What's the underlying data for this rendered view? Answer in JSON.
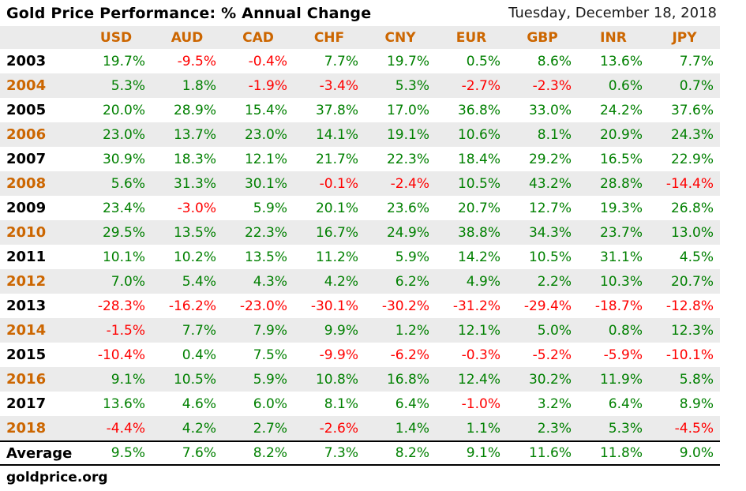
{
  "header": {
    "title": "Gold Price Performance: % Annual Change",
    "date": "Tuesday, December 18, 2018"
  },
  "footer": {
    "site": "goldprice.org"
  },
  "colors": {
    "orange": "#cc6600",
    "green": "#008000",
    "red": "#ff0000",
    "stripe": "#ebebeb",
    "text": "#000000",
    "background": "#ffffff"
  },
  "chart_data": {
    "type": "table",
    "title": "Gold Price Performance: % Annual Change",
    "columns": [
      "USD",
      "AUD",
      "CAD",
      "CHF",
      "CNY",
      "EUR",
      "GBP",
      "INR",
      "JPY"
    ],
    "row_header_label": "",
    "rows": [
      {
        "label": "2003",
        "values": [
          "19.7%",
          "-9.5%",
          "-0.4%",
          "7.7%",
          "19.7%",
          "0.5%",
          "8.6%",
          "13.6%",
          "7.7%"
        ]
      },
      {
        "label": "2004",
        "values": [
          "5.3%",
          "1.8%",
          "-1.9%",
          "-3.4%",
          "5.3%",
          "-2.7%",
          "-2.3%",
          "0.6%",
          "0.7%"
        ]
      },
      {
        "label": "2005",
        "values": [
          "20.0%",
          "28.9%",
          "15.4%",
          "37.8%",
          "17.0%",
          "36.8%",
          "33.0%",
          "24.2%",
          "37.6%"
        ]
      },
      {
        "label": "2006",
        "values": [
          "23.0%",
          "13.7%",
          "23.0%",
          "14.1%",
          "19.1%",
          "10.6%",
          "8.1%",
          "20.9%",
          "24.3%"
        ]
      },
      {
        "label": "2007",
        "values": [
          "30.9%",
          "18.3%",
          "12.1%",
          "21.7%",
          "22.3%",
          "18.4%",
          "29.2%",
          "16.5%",
          "22.9%"
        ]
      },
      {
        "label": "2008",
        "values": [
          "5.6%",
          "31.3%",
          "30.1%",
          "-0.1%",
          "-2.4%",
          "10.5%",
          "43.2%",
          "28.8%",
          "-14.4%"
        ]
      },
      {
        "label": "2009",
        "values": [
          "23.4%",
          "-3.0%",
          "5.9%",
          "20.1%",
          "23.6%",
          "20.7%",
          "12.7%",
          "19.3%",
          "26.8%"
        ]
      },
      {
        "label": "2010",
        "values": [
          "29.5%",
          "13.5%",
          "22.3%",
          "16.7%",
          "24.9%",
          "38.8%",
          "34.3%",
          "23.7%",
          "13.0%"
        ]
      },
      {
        "label": "2011",
        "values": [
          "10.1%",
          "10.2%",
          "13.5%",
          "11.2%",
          "5.9%",
          "14.2%",
          "10.5%",
          "31.1%",
          "4.5%"
        ]
      },
      {
        "label": "2012",
        "values": [
          "7.0%",
          "5.4%",
          "4.3%",
          "4.2%",
          "6.2%",
          "4.9%",
          "2.2%",
          "10.3%",
          "20.7%"
        ]
      },
      {
        "label": "2013",
        "values": [
          "-28.3%",
          "-16.2%",
          "-23.0%",
          "-30.1%",
          "-30.2%",
          "-31.2%",
          "-29.4%",
          "-18.7%",
          "-12.8%"
        ]
      },
      {
        "label": "2014",
        "values": [
          "-1.5%",
          "7.7%",
          "7.9%",
          "9.9%",
          "1.2%",
          "12.1%",
          "5.0%",
          "0.8%",
          "12.3%"
        ]
      },
      {
        "label": "2015",
        "values": [
          "-10.4%",
          "0.4%",
          "7.5%",
          "-9.9%",
          "-6.2%",
          "-0.3%",
          "-5.2%",
          "-5.9%",
          "-10.1%"
        ]
      },
      {
        "label": "2016",
        "values": [
          "9.1%",
          "10.5%",
          "5.9%",
          "10.8%",
          "16.8%",
          "12.4%",
          "30.2%",
          "11.9%",
          "5.8%"
        ]
      },
      {
        "label": "2017",
        "values": [
          "13.6%",
          "4.6%",
          "6.0%",
          "8.1%",
          "6.4%",
          "-1.0%",
          "3.2%",
          "6.4%",
          "8.9%"
        ]
      },
      {
        "label": "2018",
        "values": [
          "-4.4%",
          "4.2%",
          "2.7%",
          "-2.6%",
          "1.4%",
          "1.1%",
          "2.3%",
          "5.3%",
          "-4.5%"
        ]
      }
    ],
    "summary_row": {
      "label": "Average",
      "values": [
        "9.5%",
        "7.6%",
        "8.2%",
        "7.3%",
        "8.2%",
        "9.1%",
        "11.6%",
        "11.8%",
        "9.0%"
      ]
    },
    "layout": {
      "stripe_rows": "even data rows shaded",
      "value_color_rule": "negative=red, non-negative=green",
      "year_color_rule": "shaded rows orange, white rows black"
    }
  }
}
